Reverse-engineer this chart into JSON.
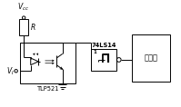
{
  "bg_color": "#ffffff",
  "line_color": "#000000",
  "line_width": 0.7,
  "fig_width": 1.99,
  "fig_height": 1.18,
  "dpi": 100,
  "labels": {
    "vcc": "V",
    "vcc_sub": "cc",
    "vi": "V",
    "vi_sub": "I",
    "R": "R",
    "tlp": "TLP521",
    "ic": "74LS14",
    "mcu": "单片机",
    "gate_num": "1"
  },
  "font_size": 5.5,
  "font_size_small": 4.8,
  "font_size_tiny": 3.8
}
